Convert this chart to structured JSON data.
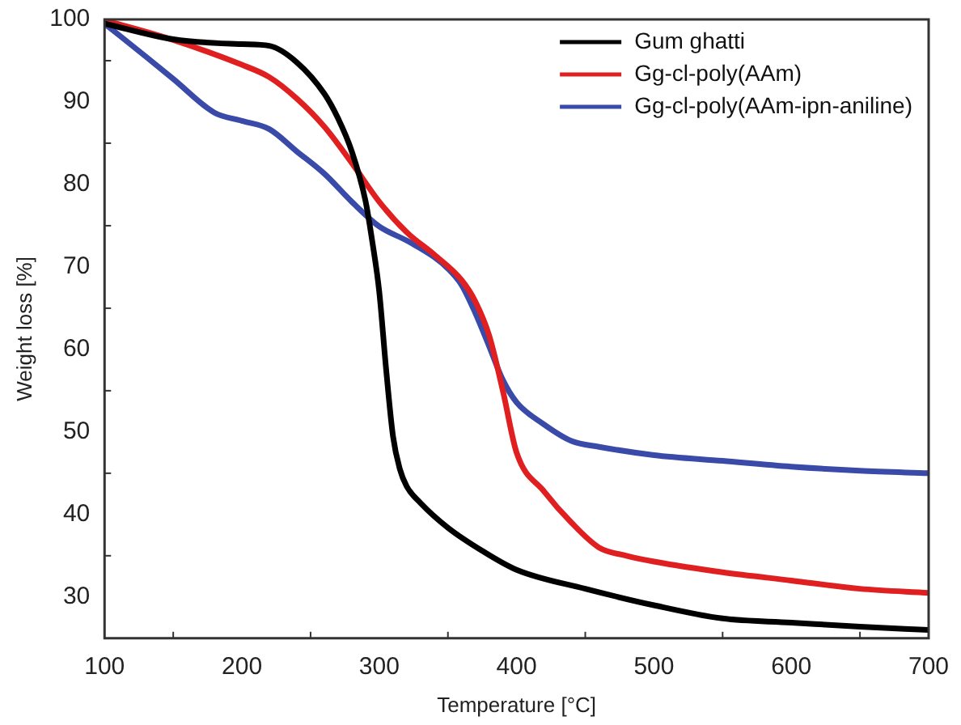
{
  "chart_data": {
    "type": "line",
    "xlabel": "Temperature [°C]",
    "ylabel": "Weight loss [%]",
    "xlim": [
      100,
      700
    ],
    "xticks": [
      100,
      200,
      300,
      400,
      500,
      600,
      700
    ],
    "ylim": [
      25,
      100
    ],
    "yticks": [
      30,
      40,
      50,
      60,
      70,
      80,
      90,
      100
    ],
    "grid": false,
    "legend": "top right",
    "marker": "none",
    "line_style": "solid",
    "series": [
      {
        "name": "Gum ghatti",
        "color": "#000000",
        "x": [
          100,
          150,
          200,
          220,
          240,
          260,
          270,
          280,
          290,
          295,
          300,
          305,
          310,
          315,
          320,
          330,
          350,
          375,
          400,
          450,
          500,
          550,
          600,
          650,
          700
        ],
        "values": [
          99.5,
          97.6,
          97,
          96.8,
          94.8,
          91,
          88,
          84,
          78,
          73,
          67,
          57.6,
          49.5,
          45.5,
          43.4,
          41.4,
          38.4,
          35.6,
          33.3,
          31,
          29,
          27.4,
          26.9,
          26.4,
          26
        ]
      },
      {
        "name": "Gg-cl-poly(AAm)",
        "color": "#e02020",
        "x": [
          100,
          150,
          200,
          220,
          240,
          260,
          280,
          300,
          320,
          340,
          360,
          370,
          380,
          390,
          400,
          420,
          440,
          460,
          480,
          500,
          550,
          600,
          650,
          700
        ],
        "values": [
          99.9,
          97.5,
          94.5,
          93,
          90.4,
          87,
          82.6,
          77.9,
          74.2,
          71.5,
          68.4,
          65.8,
          61.7,
          55,
          47.5,
          42.8,
          39,
          36,
          35,
          34.3,
          33,
          32,
          31,
          30.5
        ]
      },
      {
        "name": "Gg-cl-poly(AAm-ipn-aniline)",
        "color": "#3a4aa8",
        "x": [
          100,
          130,
          150,
          180,
          200,
          220,
          240,
          260,
          280,
          300,
          320,
          340,
          350,
          360,
          370,
          380,
          390,
          400,
          420,
          440,
          460,
          500,
          550,
          600,
          650,
          700
        ],
        "values": [
          99.5,
          95.5,
          92.8,
          88.7,
          87.7,
          86.7,
          84,
          81.3,
          77.9,
          74.9,
          73.2,
          71.2,
          69.8,
          67.8,
          64.4,
          60.4,
          56.3,
          53.6,
          50.9,
          48.9,
          48.2,
          47.2,
          46.5,
          45.8,
          45.3,
          45
        ]
      }
    ]
  }
}
